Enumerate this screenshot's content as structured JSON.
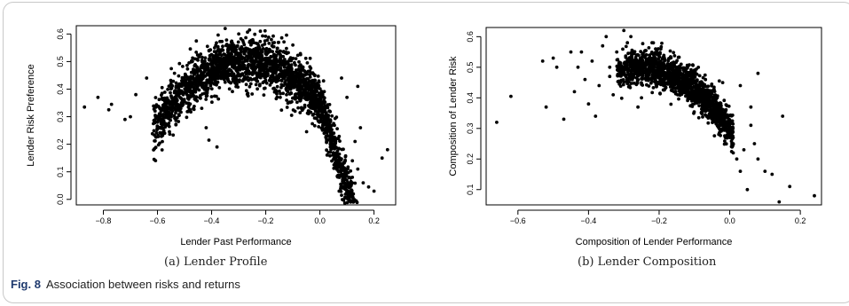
{
  "figure": {
    "caption_label": "Fig. 8",
    "caption_text": "Association between risks and returns"
  },
  "panels": [
    {
      "subcaption": "(a) Lender Profile"
    },
    {
      "subcaption": "(b) Lender Composition"
    }
  ],
  "chart_data": [
    {
      "type": "scatter",
      "title": "",
      "xlabel": "Lender Past Performance",
      "ylabel": "Lender Risk Preference",
      "xlim": [
        -0.9,
        0.28
      ],
      "ylim": [
        -0.02,
        0.63
      ],
      "xticks": [
        -0.8,
        -0.6,
        -0.4,
        -0.2,
        0.0,
        0.2
      ],
      "xtick_labels": [
        "−0.8",
        "−0.6",
        "−0.4",
        "−0.2",
        "0.0",
        "0.2"
      ],
      "yticks": [
        0.0,
        0.1,
        0.2,
        0.3,
        0.4,
        0.5,
        0.6
      ],
      "ytick_labels": [
        "0.0",
        "0.1",
        "0.2",
        "0.3",
        "0.4",
        "0.5",
        "0.6"
      ],
      "grid": false,
      "point_color": "#000000",
      "trend": {
        "vertex_x": -0.27,
        "peak_y": 0.5,
        "curvature": 2.05,
        "spread": 0.045
      },
      "dense_count": 2400,
      "points": [
        {
          "x": -0.87,
          "y": 0.335
        },
        {
          "x": -0.82,
          "y": 0.37
        },
        {
          "x": -0.77,
          "y": 0.345
        },
        {
          "x": -0.78,
          "y": 0.325
        },
        {
          "x": -0.72,
          "y": 0.29
        },
        {
          "x": -0.7,
          "y": 0.3
        },
        {
          "x": -0.68,
          "y": 0.38
        },
        {
          "x": -0.64,
          "y": 0.44
        },
        {
          "x": -0.6,
          "y": 0.28
        },
        {
          "x": -0.55,
          "y": 0.3
        },
        {
          "x": -0.42,
          "y": 0.26
        },
        {
          "x": -0.41,
          "y": 0.215
        },
        {
          "x": -0.35,
          "y": 0.62
        },
        {
          "x": -0.22,
          "y": 0.61
        },
        {
          "x": -0.1,
          "y": 0.56
        },
        {
          "x": -0.3,
          "y": 0.6
        },
        {
          "x": 0.08,
          "y": 0.44
        },
        {
          "x": 0.1,
          "y": 0.37
        },
        {
          "x": 0.14,
          "y": 0.41
        },
        {
          "x": 0.15,
          "y": 0.26
        },
        {
          "x": 0.13,
          "y": 0.21
        },
        {
          "x": 0.12,
          "y": 0.14
        },
        {
          "x": 0.14,
          "y": 0.11
        },
        {
          "x": 0.18,
          "y": 0.045
        },
        {
          "x": 0.2,
          "y": 0.03
        },
        {
          "x": 0.23,
          "y": 0.15
        },
        {
          "x": 0.25,
          "y": 0.18
        },
        {
          "x": 0.11,
          "y": 0.01
        },
        {
          "x": 0.08,
          "y": 0.015
        },
        {
          "x": 0.16,
          "y": 0.06
        },
        {
          "x": 0.09,
          "y": 0.06
        },
        {
          "x": 0.12,
          "y": 0.08
        },
        {
          "x": 0.07,
          "y": 0.1
        },
        {
          "x": 0.1,
          "y": 0.03
        },
        {
          "x": -0.38,
          "y": 0.19
        },
        {
          "x": 0.05,
          "y": 0.2
        }
      ]
    },
    {
      "type": "scatter",
      "title": "",
      "xlabel": "Composition of Lender Performance",
      "ylabel": "Composition of Lender Risk",
      "xlim": [
        -0.69,
        0.26
      ],
      "ylim": [
        0.05,
        0.63
      ],
      "xticks": [
        -0.6,
        -0.4,
        -0.2,
        0.0,
        0.2
      ],
      "xtick_labels": [
        "−0.6",
        "−0.4",
        "−0.2",
        "0.0",
        "0.2"
      ],
      "yticks": [
        0.1,
        0.2,
        0.3,
        0.4,
        0.5,
        0.6
      ],
      "ytick_labels": [
        "0.1",
        "0.2",
        "0.3",
        "0.4",
        "0.5",
        "0.6"
      ],
      "grid": false,
      "point_color": "#000000",
      "trend": {
        "vertex_x": -0.25,
        "peak_y": 0.5,
        "curvature": 3.2,
        "spread": 0.03,
        "x_min": -0.32,
        "x_max": 0.01
      },
      "dense_count": 1500,
      "points": [
        {
          "x": -0.66,
          "y": 0.32
        },
        {
          "x": -0.62,
          "y": 0.405
        },
        {
          "x": -0.53,
          "y": 0.52
        },
        {
          "x": -0.52,
          "y": 0.37
        },
        {
          "x": -0.5,
          "y": 0.53
        },
        {
          "x": -0.49,
          "y": 0.5
        },
        {
          "x": -0.47,
          "y": 0.33
        },
        {
          "x": -0.45,
          "y": 0.55
        },
        {
          "x": -0.44,
          "y": 0.42
        },
        {
          "x": -0.43,
          "y": 0.5
        },
        {
          "x": -0.42,
          "y": 0.55
        },
        {
          "x": -0.41,
          "y": 0.46
        },
        {
          "x": -0.4,
          "y": 0.38
        },
        {
          "x": -0.39,
          "y": 0.52
        },
        {
          "x": -0.38,
          "y": 0.34
        },
        {
          "x": -0.37,
          "y": 0.44
        },
        {
          "x": -0.36,
          "y": 0.57
        },
        {
          "x": -0.35,
          "y": 0.6
        },
        {
          "x": -0.34,
          "y": 0.47
        },
        {
          "x": -0.33,
          "y": 0.41
        },
        {
          "x": -0.32,
          "y": 0.55
        },
        {
          "x": -0.3,
          "y": 0.62
        },
        {
          "x": -0.29,
          "y": 0.58
        },
        {
          "x": -0.28,
          "y": 0.6
        },
        {
          "x": -0.26,
          "y": 0.37
        },
        {
          "x": -0.25,
          "y": 0.4
        },
        {
          "x": -0.22,
          "y": 0.58
        },
        {
          "x": -0.21,
          "y": 0.56
        },
        {
          "x": -0.34,
          "y": 0.5
        },
        {
          "x": -0.31,
          "y": 0.45
        },
        {
          "x": -0.02,
          "y": 0.45
        },
        {
          "x": 0.03,
          "y": 0.44
        },
        {
          "x": 0.06,
          "y": 0.37
        },
        {
          "x": 0.06,
          "y": 0.31
        },
        {
          "x": 0.04,
          "y": 0.23
        },
        {
          "x": 0.07,
          "y": 0.25
        },
        {
          "x": 0.08,
          "y": 0.2
        },
        {
          "x": 0.08,
          "y": 0.48
        },
        {
          "x": 0.1,
          "y": 0.16
        },
        {
          "x": 0.12,
          "y": 0.15
        },
        {
          "x": 0.15,
          "y": 0.34
        },
        {
          "x": 0.14,
          "y": 0.06
        },
        {
          "x": 0.17,
          "y": 0.11
        },
        {
          "x": 0.24,
          "y": 0.08
        },
        {
          "x": 0.03,
          "y": 0.16
        },
        {
          "x": 0.05,
          "y": 0.1
        },
        {
          "x": 0.02,
          "y": 0.2
        },
        {
          "x": 0.0,
          "y": 0.27
        }
      ]
    }
  ]
}
